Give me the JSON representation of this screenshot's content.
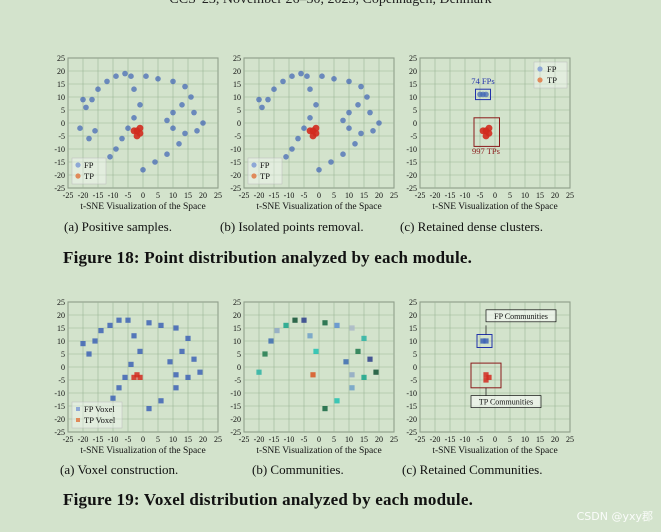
{
  "header": "CCS '23, November 26–30, 2023, Copenhagen, Denmark",
  "figure18": {
    "caption": "Figure 18: Point distribution analyzed by each module.",
    "subcaptions": [
      "(a)  Positive samples.",
      "(b)  Isolated points removal.",
      "(c)  Retained dense clusters."
    ]
  },
  "figure19": {
    "caption": "Figure 19: Voxel distribution analyzed by each module.",
    "subcaptions": [
      "(a)  Voxel construction.",
      "(b)  Communities.",
      "(c)  Retained Communities."
    ]
  },
  "axis": {
    "xlabel": "t-SNE Visualization of the Space",
    "ticks": [
      "-25",
      "-20",
      "-15",
      "-10",
      "-5",
      "0",
      "5",
      "10",
      "15",
      "20",
      "25"
    ]
  },
  "legends": {
    "points": [
      "FP",
      "TP"
    ],
    "voxels": [
      "FP Voxel",
      "TP Voxel"
    ]
  },
  "annotations": {
    "fps": "74 FPs",
    "tps": "997 TPs",
    "fp_communities": "FP Communities",
    "tp_communities": "TP Communities"
  },
  "colors": {
    "fp": "#3d63b5",
    "tp": "#d22a1e",
    "background": "#d3e3cc",
    "grid": "#9bb596",
    "annotation_fp": "#2233aa",
    "annotation_tp": "#8a1a1a"
  },
  "watermark": "CSDN @yxy郡",
  "chart_data": [
    {
      "type": "scatter",
      "xlim": [
        -25,
        25
      ],
      "ylim": [
        -25,
        25
      ],
      "xlabel": "t-SNE Visualization of the Space",
      "legend": "bottom-left",
      "series": [
        {
          "name": "FP",
          "points": [
            [
              -20,
              9
            ],
            [
              -19,
              6
            ],
            [
              -17,
              9
            ],
            [
              -15,
              13
            ],
            [
              -12,
              16
            ],
            [
              -9,
              18
            ],
            [
              -6,
              19
            ],
            [
              -4,
              18
            ],
            [
              -3,
              13
            ],
            [
              -1,
              7
            ],
            [
              -3,
              2
            ],
            [
              -5,
              -2
            ],
            [
              -7,
              -6
            ],
            [
              -9,
              -10
            ],
            [
              -11,
              -13
            ],
            [
              1,
              18
            ],
            [
              5,
              17
            ],
            [
              10,
              16
            ],
            [
              14,
              14
            ],
            [
              16,
              10
            ],
            [
              13,
              7
            ],
            [
              10,
              4
            ],
            [
              8,
              1
            ],
            [
              10,
              -2
            ],
            [
              14,
              -4
            ],
            [
              18,
              -3
            ],
            [
              20,
              0
            ],
            [
              17,
              4
            ],
            [
              12,
              -8
            ],
            [
              8,
              -12
            ],
            [
              4,
              -15
            ],
            [
              0,
              -18
            ],
            [
              -18,
              -6
            ],
            [
              -21,
              -2
            ],
            [
              -16,
              -3
            ]
          ]
        },
        {
          "name": "TP",
          "points": [
            [
              -2,
              -3
            ],
            [
              -1,
              -4
            ],
            [
              -2,
              -5
            ],
            [
              -3,
              -3
            ],
            [
              -1,
              -2
            ]
          ]
        }
      ]
    },
    {
      "type": "scatter",
      "xlim": [
        -25,
        25
      ],
      "ylim": [
        -25,
        25
      ],
      "xlabel": "t-SNE Visualization of the Space",
      "legend": "bottom-left",
      "series": [
        {
          "name": "FP",
          "points": [
            [
              -20,
              9
            ],
            [
              -19,
              6
            ],
            [
              -17,
              9
            ],
            [
              -15,
              13
            ],
            [
              -12,
              16
            ],
            [
              -9,
              18
            ],
            [
              -6,
              19
            ],
            [
              -4,
              18
            ],
            [
              -3,
              13
            ],
            [
              -1,
              7
            ],
            [
              -3,
              2
            ],
            [
              -5,
              -2
            ],
            [
              -7,
              -6
            ],
            [
              -9,
              -10
            ],
            [
              -11,
              -13
            ],
            [
              1,
              18
            ],
            [
              5,
              17
            ],
            [
              10,
              16
            ],
            [
              14,
              14
            ],
            [
              16,
              10
            ],
            [
              13,
              7
            ],
            [
              10,
              4
            ],
            [
              8,
              1
            ],
            [
              10,
              -2
            ],
            [
              14,
              -4
            ],
            [
              18,
              -3
            ],
            [
              20,
              0
            ],
            [
              17,
              4
            ],
            [
              12,
              -8
            ],
            [
              8,
              -12
            ],
            [
              4,
              -15
            ],
            [
              0,
              -18
            ]
          ]
        },
        {
          "name": "TP",
          "points": [
            [
              -2,
              -3
            ],
            [
              -1,
              -4
            ],
            [
              -2,
              -5
            ],
            [
              -3,
              -3
            ],
            [
              -1,
              -2
            ]
          ]
        }
      ]
    },
    {
      "type": "scatter",
      "xlim": [
        -25,
        25
      ],
      "ylim": [
        -25,
        25
      ],
      "xlabel": "t-SNE Visualization of the Space",
      "legend": "top-right",
      "series": [
        {
          "name": "FP",
          "points": [
            [
              -5,
              11
            ],
            [
              -4,
              11
            ],
            [
              -3,
              11
            ]
          ]
        },
        {
          "name": "TP",
          "points": [
            [
              -3,
              -3
            ],
            [
              -2,
              -4
            ],
            [
              -3,
              -5
            ],
            [
              -4,
              -3
            ],
            [
              -2,
              -2
            ]
          ]
        }
      ]
    },
    {
      "type": "scatter",
      "xlim": [
        -25,
        25
      ],
      "ylim": [
        -25,
        25
      ],
      "xlabel": "t-SNE Visualization of the Space",
      "legend": "bottom-left",
      "series": [
        {
          "name": "FP Voxel",
          "points": [
            [
              -20,
              9
            ],
            [
              -18,
              5
            ],
            [
              -16,
              10
            ],
            [
              -14,
              14
            ],
            [
              -11,
              16
            ],
            [
              -8,
              18
            ],
            [
              -5,
              18
            ],
            [
              -3,
              12
            ],
            [
              -1,
              6
            ],
            [
              -4,
              1
            ],
            [
              -6,
              -4
            ],
            [
              -8,
              -8
            ],
            [
              -10,
              -12
            ],
            [
              2,
              17
            ],
            [
              6,
              16
            ],
            [
              11,
              15
            ],
            [
              15,
              11
            ],
            [
              13,
              6
            ],
            [
              9,
              2
            ],
            [
              11,
              -3
            ],
            [
              15,
              -4
            ],
            [
              19,
              -2
            ],
            [
              17,
              3
            ],
            [
              11,
              -8
            ],
            [
              6,
              -13
            ],
            [
              2,
              -16
            ]
          ]
        },
        {
          "name": "TP Voxel",
          "points": [
            [
              -2,
              -3
            ],
            [
              -1,
              -4
            ],
            [
              -3,
              -4
            ]
          ]
        }
      ]
    },
    {
      "type": "scatter",
      "xlim": [
        -25,
        25
      ],
      "ylim": [
        -25,
        25
      ],
      "xlabel": "t-SNE Visualization of the Space",
      "series": [
        {
          "name": "communities",
          "points": [
            [
              -20,
              -2
            ],
            [
              -18,
              5
            ],
            [
              -16,
              10
            ],
            [
              -14,
              14
            ],
            [
              -11,
              16
            ],
            [
              -8,
              18
            ],
            [
              -5,
              18
            ],
            [
              -3,
              12
            ],
            [
              -1,
              6
            ],
            [
              2,
              17
            ],
            [
              6,
              16
            ],
            [
              11,
              15
            ],
            [
              15,
              11
            ],
            [
              13,
              6
            ],
            [
              9,
              2
            ],
            [
              11,
              -3
            ],
            [
              15,
              -4
            ],
            [
              19,
              -2
            ],
            [
              17,
              3
            ],
            [
              11,
              -8
            ],
            [
              6,
              -13
            ],
            [
              2,
              -16
            ],
            [
              -2,
              -3
            ]
          ]
        }
      ]
    },
    {
      "type": "scatter",
      "xlim": [
        -25,
        25
      ],
      "ylim": [
        -25,
        25
      ],
      "xlabel": "t-SNE Visualization of the Space",
      "series": [
        {
          "name": "FP Communities",
          "points": [
            [
              -4,
              10
            ],
            [
              -3,
              10
            ]
          ]
        },
        {
          "name": "TP Communities",
          "points": [
            [
              -3,
              -3
            ],
            [
              -2,
              -4
            ],
            [
              -3,
              -5
            ]
          ]
        }
      ]
    }
  ]
}
